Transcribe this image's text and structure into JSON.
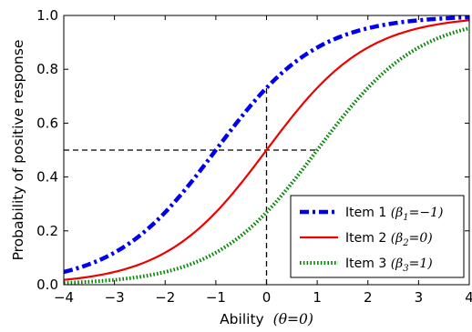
{
  "chart_data": {
    "type": "line",
    "xlabel": "Ability",
    "xlabel_math": "(θ=0)",
    "ylabel": "Probability of positive response",
    "xlim": [
      -4,
      4
    ],
    "ylim": [
      0.0,
      1.0
    ],
    "xticks": [
      "−4",
      "−3",
      "−2",
      "−1",
      "0",
      "1",
      "2",
      "3",
      "4"
    ],
    "xtick_values": [
      -4,
      -3,
      -2,
      -1,
      0,
      1,
      2,
      3,
      4
    ],
    "yticks": [
      "0.0",
      "0.2",
      "0.4",
      "0.6",
      "0.8",
      "1.0"
    ],
    "ytick_values": [
      0.0,
      0.2,
      0.4,
      0.6,
      0.8,
      1.0
    ],
    "grid": false,
    "legend_position": "lower-right",
    "series": [
      {
        "name": "Item 1",
        "beta_label": "(β",
        "subscript": "1",
        "beta_value": "=−1)",
        "beta": -1,
        "color": "#0000ee",
        "style": "dashdot",
        "x": [
          -4,
          -3.5,
          -3,
          -2.5,
          -2,
          -1.5,
          -1,
          -0.5,
          0,
          0.5,
          1,
          1.5,
          2,
          2.5,
          3,
          3.5,
          4
        ],
        "y": [
          0.047,
          0.076,
          0.119,
          0.182,
          0.269,
          0.378,
          0.5,
          0.622,
          0.731,
          0.818,
          0.881,
          0.924,
          0.953,
          0.971,
          0.982,
          0.989,
          0.993
        ]
      },
      {
        "name": "Item 2",
        "beta_label": "(β",
        "subscript": "2",
        "beta_value": "=0)",
        "beta": 0,
        "color": "#ee0000",
        "style": "solid",
        "x": [
          -4,
          -3.5,
          -3,
          -2.5,
          -2,
          -1.5,
          -1,
          -0.5,
          0,
          0.5,
          1,
          1.5,
          2,
          2.5,
          3,
          3.5,
          4
        ],
        "y": [
          0.018,
          0.029,
          0.047,
          0.076,
          0.119,
          0.182,
          0.269,
          0.378,
          0.5,
          0.622,
          0.731,
          0.818,
          0.881,
          0.924,
          0.953,
          0.971,
          0.982
        ]
      },
      {
        "name": "Item 3",
        "beta_label": "(β",
        "subscript": "3",
        "beta_value": "=1)",
        "beta": 1,
        "color": "#008800",
        "style": "dotted",
        "x": [
          -4,
          -3.5,
          -3,
          -2.5,
          -2,
          -1.5,
          -1,
          -0.5,
          0,
          0.5,
          1,
          1.5,
          2,
          2.5,
          3,
          3.5,
          4
        ],
        "y": [
          0.007,
          0.011,
          0.018,
          0.029,
          0.047,
          0.076,
          0.119,
          0.182,
          0.269,
          0.378,
          0.5,
          0.622,
          0.731,
          0.818,
          0.881,
          0.924,
          0.953
        ]
      }
    ],
    "reference_lines": {
      "vertical_x": 0,
      "vertical_to_y": 0.731,
      "horizontal_y": 0.5,
      "horizontal_to_x": 1
    }
  }
}
